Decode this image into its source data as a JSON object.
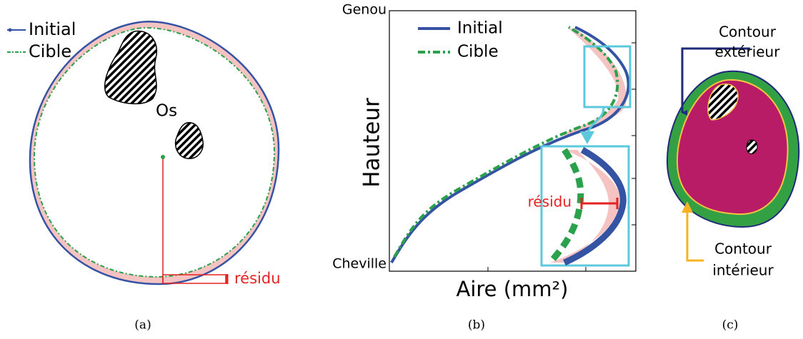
{
  "panel_a": {
    "legend": [
      "Initial",
      "Cible"
    ],
    "bone_label": "Os",
    "residual_label": "résidu",
    "caption": "(a)"
  },
  "panel_b": {
    "top_label": "Genou",
    "bottom_label": "Cheville",
    "y_axis_title": "Hauteur",
    "x_axis_title": "Aire (mm²)",
    "legend": [
      "Initial",
      "Cible"
    ],
    "residual_label": "résidu",
    "caption": "(b)"
  },
  "panel_c": {
    "outer_label": [
      "Contour",
      "extérieur"
    ],
    "inner_label": [
      "Contour",
      "intérieur"
    ],
    "caption": "(c)"
  }
}
